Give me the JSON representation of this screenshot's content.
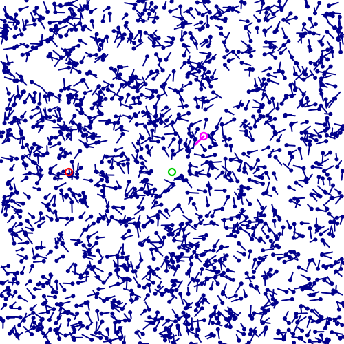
{
  "colors": {
    "background": "#ffffff",
    "agent": "#00008b",
    "target_marker": "#ff0000",
    "goal_marker": "#00d000",
    "player": "#ff00ff"
  },
  "scene": {
    "agent_count": 1600,
    "markers": [
      {
        "name": "red-ring-marker",
        "color_key": "target_marker"
      },
      {
        "name": "green-ring-marker",
        "color_key": "goal_marker"
      },
      {
        "name": "magenta-player-marker",
        "color_key": "player"
      }
    ]
  }
}
